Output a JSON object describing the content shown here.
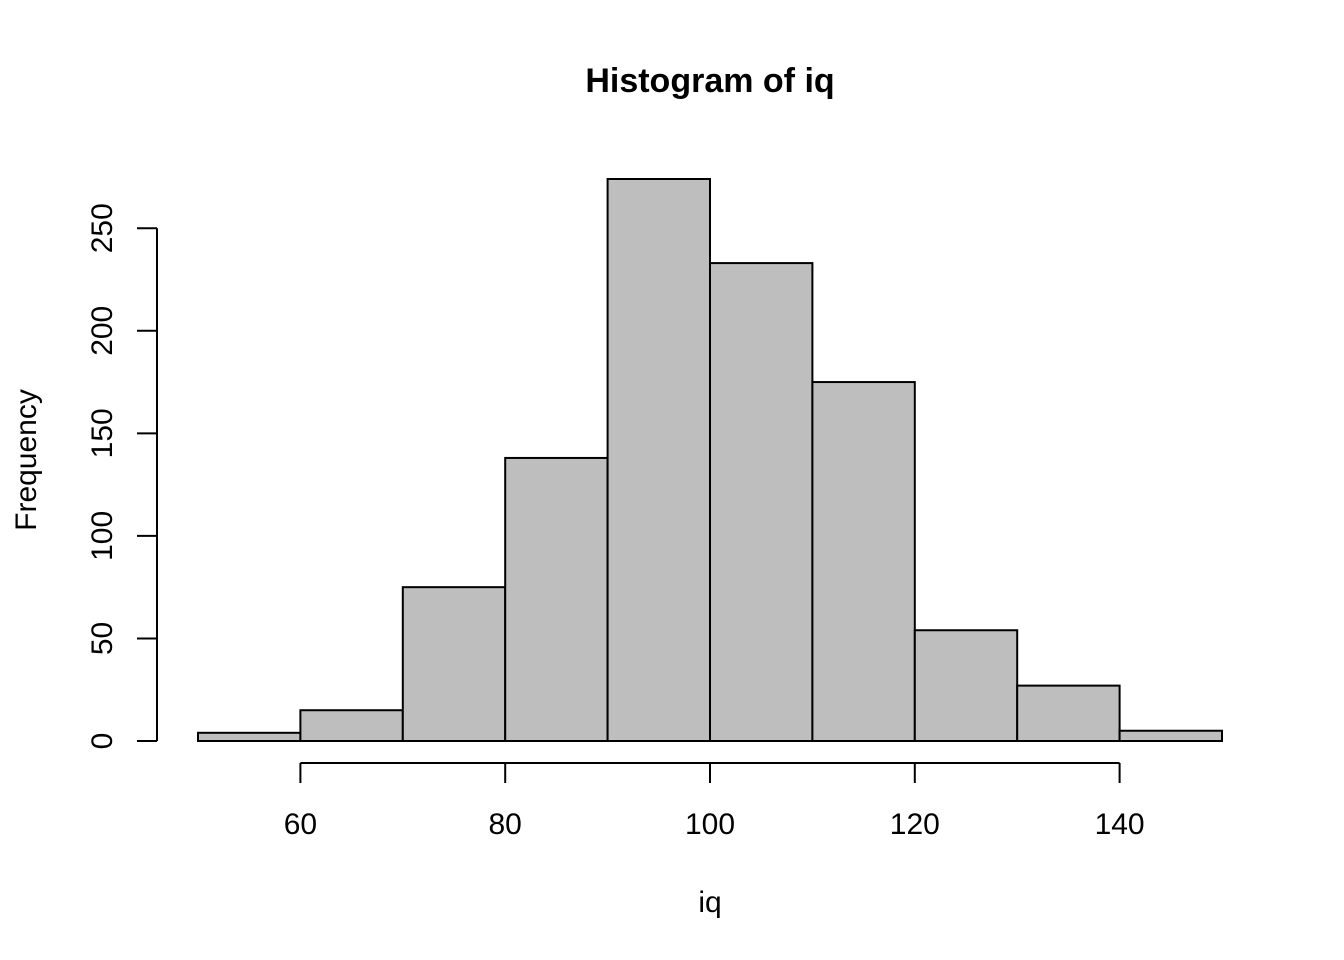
{
  "chart_data": {
    "type": "bar",
    "title": "Histogram of iq",
    "xlabel": "iq",
    "ylabel": "Frequency",
    "bins": [
      {
        "start": 50,
        "end": 60,
        "count": 4
      },
      {
        "start": 60,
        "end": 70,
        "count": 15
      },
      {
        "start": 70,
        "end": 80,
        "count": 75
      },
      {
        "start": 80,
        "end": 90,
        "count": 138
      },
      {
        "start": 90,
        "end": 100,
        "count": 274
      },
      {
        "start": 100,
        "end": 110,
        "count": 233
      },
      {
        "start": 110,
        "end": 120,
        "count": 175
      },
      {
        "start": 120,
        "end": 130,
        "count": 54
      },
      {
        "start": 130,
        "end": 140,
        "count": 27
      },
      {
        "start": 140,
        "end": 150,
        "count": 5
      }
    ],
    "xlim": [
      50,
      150
    ],
    "ylim": [
      0,
      274
    ],
    "x_ticks": [
      60,
      80,
      100,
      120,
      140
    ],
    "y_ticks": [
      0,
      50,
      100,
      150,
      200,
      250
    ],
    "x_tick_labels": [
      "60",
      "80",
      "100",
      "120",
      "140"
    ],
    "y_tick_labels": [
      "0",
      "50",
      "100",
      "150",
      "200",
      "250"
    ],
    "bar_color": "#bebebe",
    "grid": false,
    "legend": "none"
  }
}
